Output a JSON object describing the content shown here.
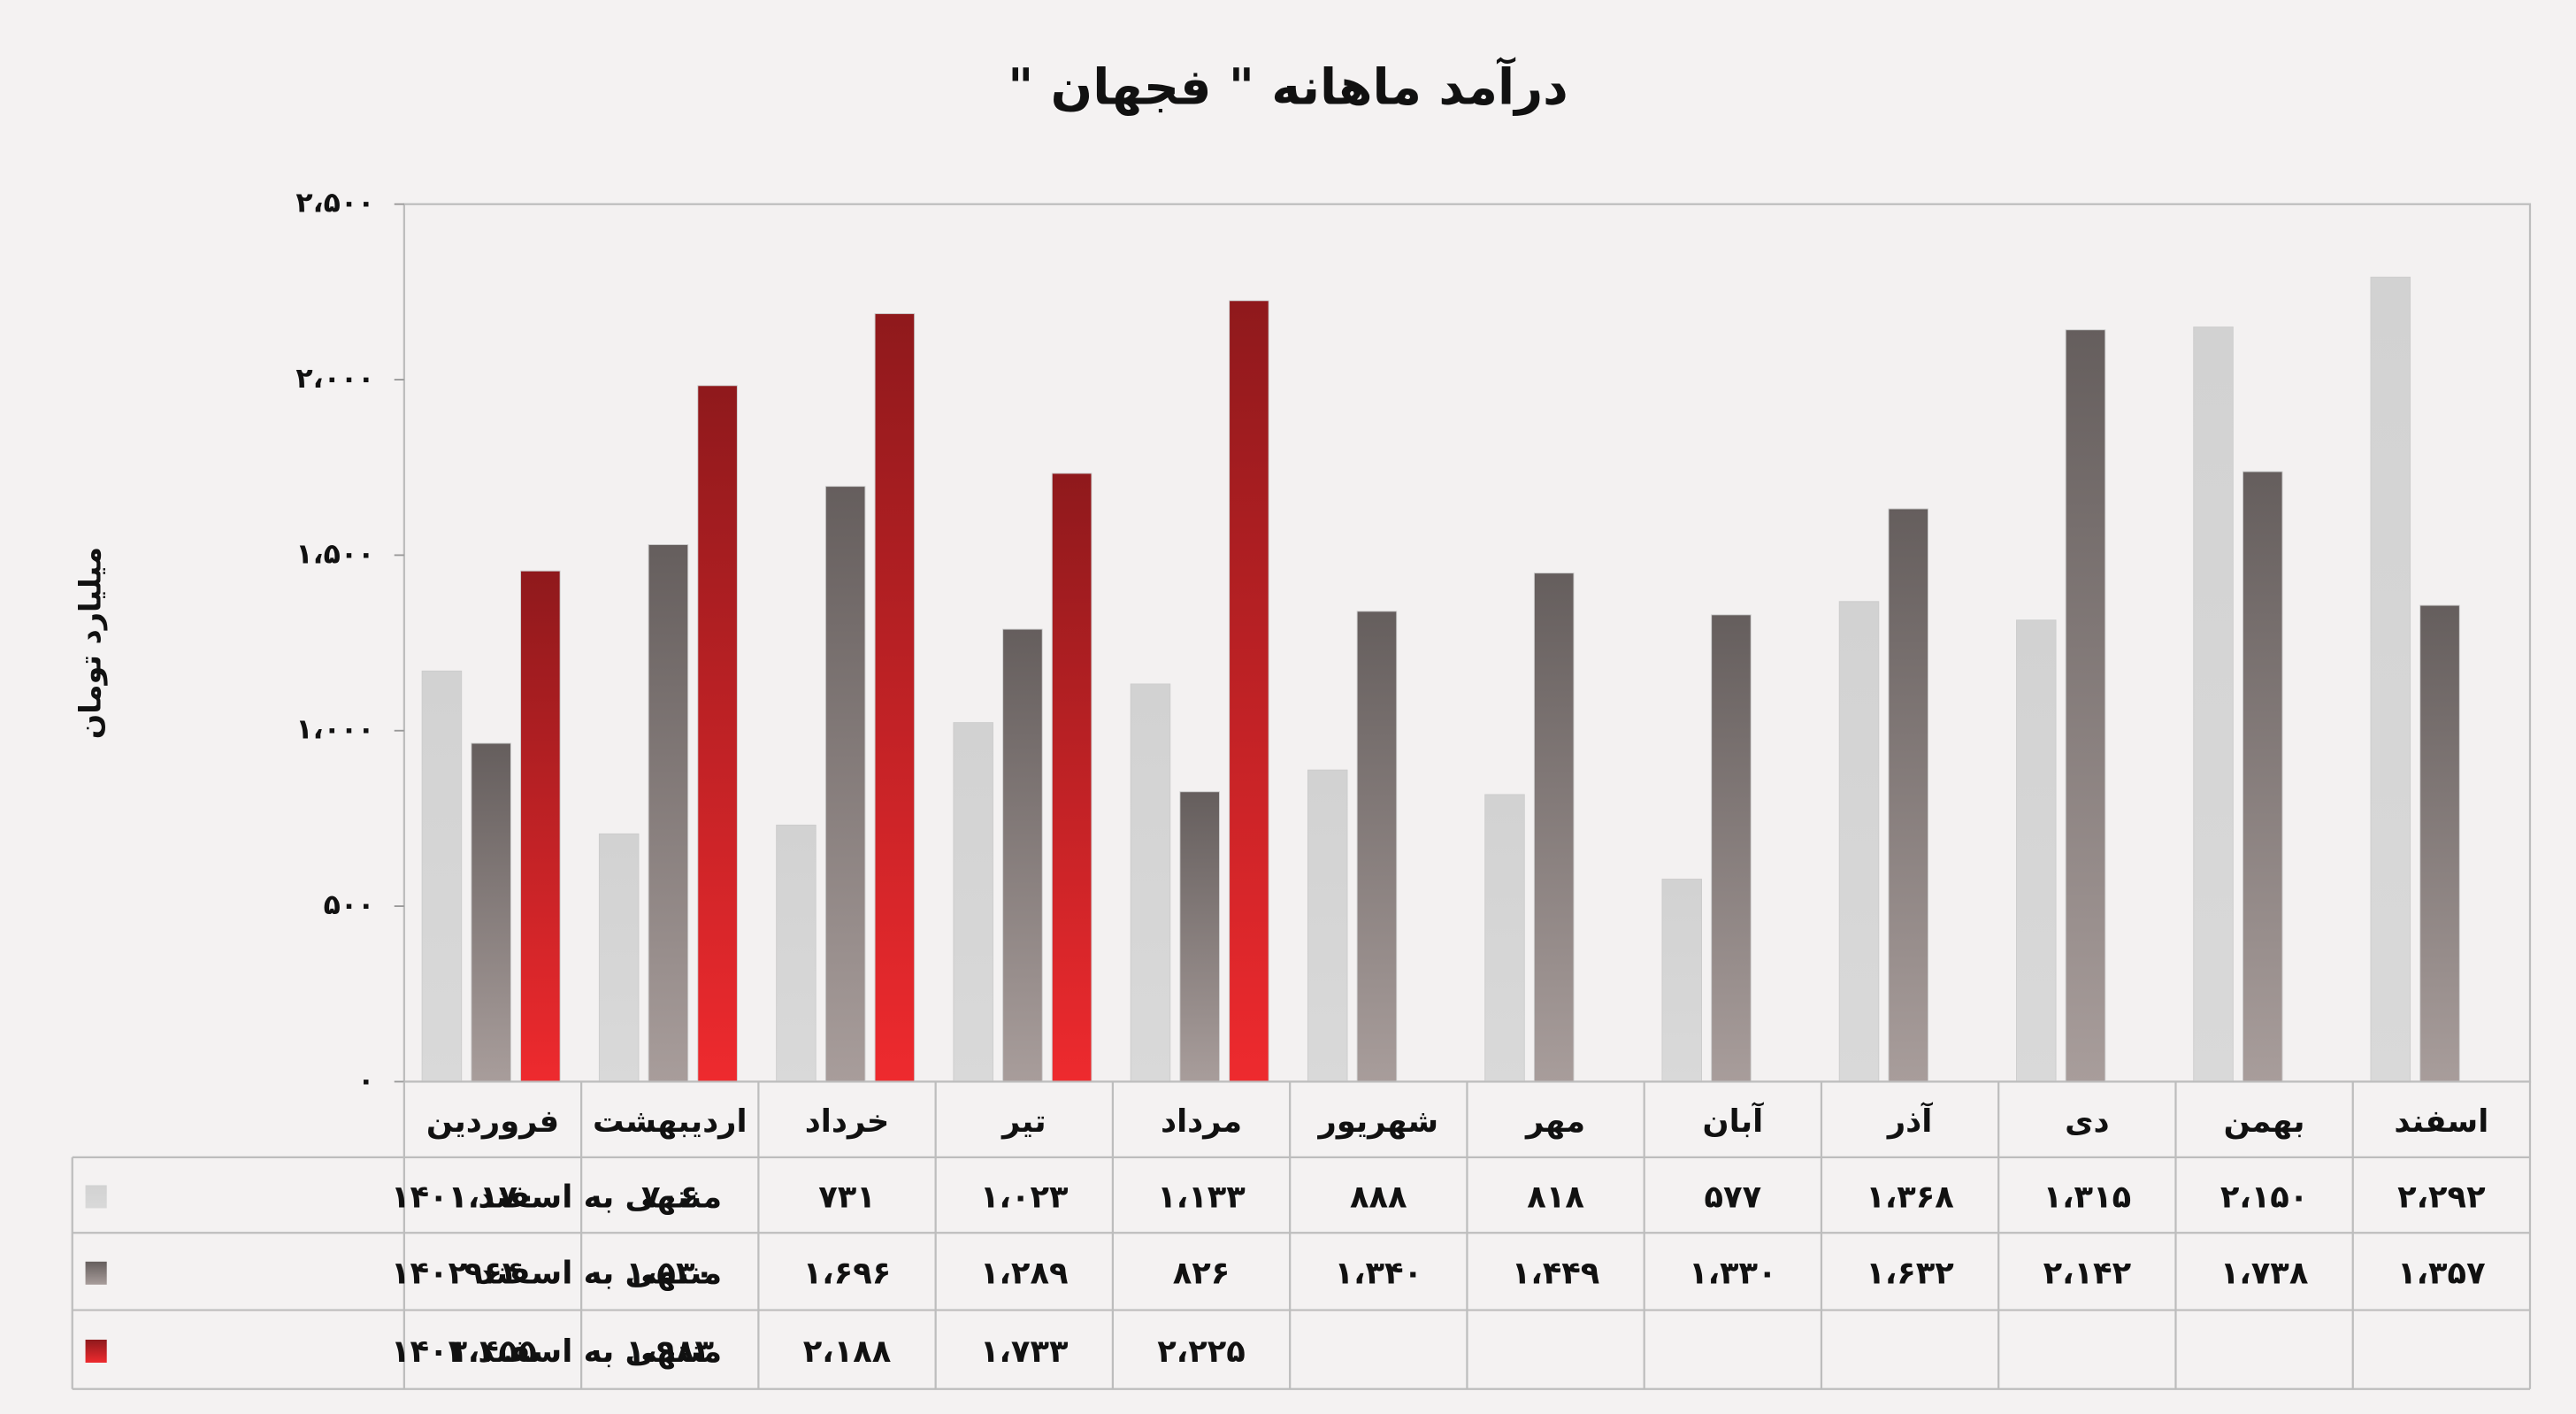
{
  "chart_data": {
    "type": "bar",
    "title": "درآمد ماهانه \" فجهان \"",
    "y_label": "میلیارد تومان",
    "categories": [
      "فروردین",
      "اردیبهشت",
      "خرداد",
      "تیر",
      "مرداد",
      "شهریور",
      "مهر",
      "آبان",
      "آذر",
      "دی",
      "بهمن",
      "اسفند"
    ],
    "series": [
      {
        "name": "منتهی به اسفند ۱۴۰۱",
        "color": "#d9d9d9",
        "values": [
          1170,
          706,
          731,
          1023,
          1133,
          888,
          818,
          577,
          1368,
          1315,
          2150,
          2292
        ],
        "value_labels": [
          "۱،۱۷۰",
          "۷۰۶",
          "۷۳۱",
          "۱،۰۲۳",
          "۱،۱۳۳",
          "۸۸۸",
          "۸۱۸",
          "۵۷۷",
          "۱،۳۶۸",
          "۱،۳۱۵",
          "۲،۱۵۰",
          "۲،۲۹۲"
        ]
      },
      {
        "name": "منتهی به اسفند ۱۴۰۲",
        "color": "#a89d9b",
        "values": [
          964,
          1530,
          1696,
          1289,
          826,
          1340,
          1449,
          1330,
          1632,
          2142,
          1738,
          1357
        ],
        "value_labels": [
          "۹۶۴",
          "۱،۵۳۰",
          "۱،۶۹۶",
          "۱،۲۸۹",
          "۸۲۶",
          "۱،۳۴۰",
          "۱،۴۴۹",
          "۱،۳۳۰",
          "۱،۶۳۲",
          "۲،۱۴۲",
          "۱،۷۳۸",
          "۱،۳۵۷"
        ]
      },
      {
        "name": "منتهی به اسفند ۱۴۰۳",
        "color": "#ee2a2e",
        "values": [
          1455,
          1983,
          2188,
          1733,
          2225,
          null,
          null,
          null,
          null,
          null,
          null,
          null
        ],
        "value_labels": [
          "۱،۴۵۵",
          "۱،۹۸۳",
          "۲،۱۸۸",
          "۱،۷۳۳",
          "۲،۲۲۵",
          null,
          null,
          null,
          null,
          null,
          null,
          null
        ]
      }
    ],
    "ylim": [
      0,
      2500
    ],
    "yticks": [
      {
        "value": 0,
        "label": "۰"
      },
      {
        "value": 500,
        "label": "۵۰۰"
      },
      {
        "value": 1000,
        "label": "۱،۰۰۰"
      },
      {
        "value": 1500,
        "label": "۱،۵۰۰"
      },
      {
        "value": 2000,
        "label": "۲،۰۰۰"
      },
      {
        "value": 2500,
        "label": "۲،۵۰۰"
      }
    ],
    "grid": false
  }
}
